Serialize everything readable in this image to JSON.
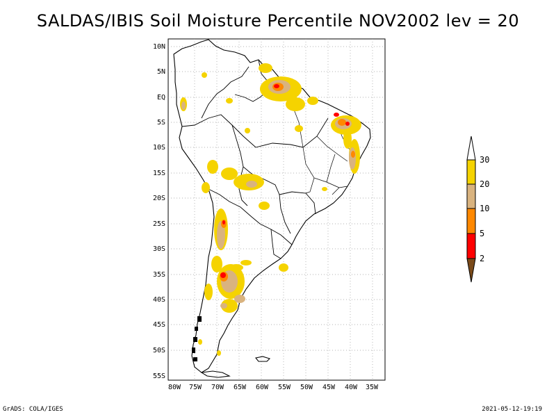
{
  "title": "SALDAS/IBIS Soil Moisture Percentile NOV2002 lev = 20",
  "map": {
    "region": "South America",
    "lat_labels": [
      "10N",
      "5N",
      "EQ",
      "5S",
      "10S",
      "15S",
      "20S",
      "25S",
      "30S",
      "35S",
      "40S",
      "45S",
      "50S",
      "55S"
    ],
    "lon_labels": [
      "80W",
      "75W",
      "70W",
      "65W",
      "60W",
      "55W",
      "50W",
      "45W",
      "40W",
      "35W"
    ]
  },
  "legend": {
    "labels": [
      "30",
      "20",
      "10",
      "5",
      "2"
    ],
    "colors": [
      "#ffffff",
      "#f5d300",
      "#d9b37f",
      "#ff8800",
      "#ff0000",
      "#7a4a1a"
    ]
  },
  "colors": {
    "yellow": "#f5d300",
    "tan": "#d9b37f",
    "orange": "#ff8800",
    "red": "#ff0000",
    "brown": "#7a4a1a"
  },
  "footer": {
    "left": "GrADS: COLA/IGES",
    "right": "2021-05-12-19:19"
  }
}
